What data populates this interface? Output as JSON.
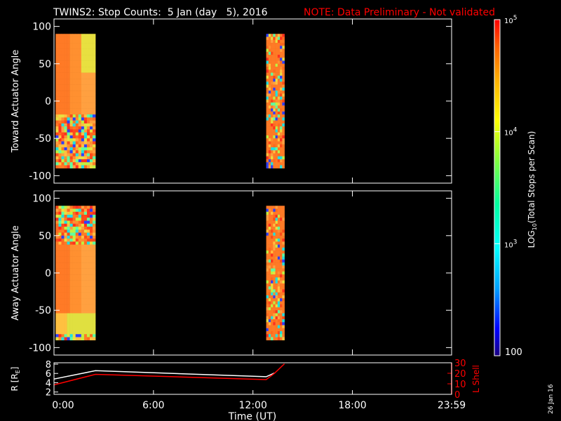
{
  "header": {
    "title": "TWINS2: Stop Counts:  5 Jan (day   5), 2016",
    "note": "NOTE: Data Preliminary - Not validated",
    "note_color": "#ff0000"
  },
  "side_date": "26 Jan 16",
  "panels": {
    "top": {
      "ylabel": "Toward Actuator Angle"
    },
    "middle": {
      "ylabel": "Away Actuator Angle"
    },
    "bottom": {
      "ylabel_left": "R [R",
      "ylabel_left_sub": "E",
      "ylabel_left_end": "]",
      "ylabel_right": "L Shell"
    }
  },
  "xaxis": {
    "label": "Time (UT)",
    "ticks": [
      "0:00",
      "6:00",
      "12:00",
      "18:00",
      "23:59"
    ]
  },
  "colorbar": {
    "label_pre": "LOG",
    "label_sub": "10",
    "label_post": "(Total Stops per Scan)",
    "ticks": [
      {
        "base": "10",
        "exp": "5"
      },
      {
        "base": "10",
        "exp": "4"
      },
      {
        "base": "10",
        "exp": "3"
      }
    ],
    "min_label": "100"
  },
  "chart_data": [
    {
      "type": "heatmap",
      "name": "toward",
      "ylabel": "Toward Actuator Angle",
      "xlim_hours": [
        0,
        23.983
      ],
      "ylim": [
        -110,
        110
      ],
      "yticks": [
        100,
        50,
        0,
        -50,
        -100
      ],
      "z_scale": "log",
      "zlim": [
        100,
        100000
      ],
      "data_intervals_hours": [
        [
          0.1,
          2.5
        ],
        [
          12.8,
          13.9
        ]
      ],
      "angle_range": [
        -90,
        90
      ]
    },
    {
      "type": "heatmap",
      "name": "away",
      "ylabel": "Away Actuator Angle",
      "xlim_hours": [
        0,
        23.983
      ],
      "ylim": [
        -110,
        110
      ],
      "yticks": [
        100,
        50,
        0,
        -50,
        -100
      ],
      "z_scale": "log",
      "zlim": [
        100,
        100000
      ],
      "data_intervals_hours": [
        [
          0.1,
          2.5
        ],
        [
          12.8,
          13.9
        ]
      ],
      "angle_range": [
        -90,
        90
      ]
    },
    {
      "type": "line",
      "name": "ephemeris",
      "xlim_hours": [
        0,
        23.983
      ],
      "left_axis": {
        "label": "R [RE]",
        "ylim": [
          1.5,
          8.3
        ],
        "ticks": [
          8,
          6,
          4,
          2
        ]
      },
      "right_axis": {
        "label": "L Shell",
        "ylim": [
          0,
          30
        ],
        "ticks": [
          30,
          20,
          10,
          0
        ],
        "color": "#ff0000"
      },
      "series": [
        {
          "axis": "left",
          "color": "#ffffff",
          "x": [
            0,
            2.5,
            12.8,
            13.3
          ],
          "y": [
            4.8,
            6.6,
            5.3,
            6.1
          ]
        },
        {
          "axis": "right",
          "color": "#ff0000",
          "x": [
            0,
            2.5,
            12.8,
            13.3,
            13.9
          ],
          "y": [
            9,
            19,
            14,
            20,
            29
          ]
        }
      ]
    }
  ]
}
